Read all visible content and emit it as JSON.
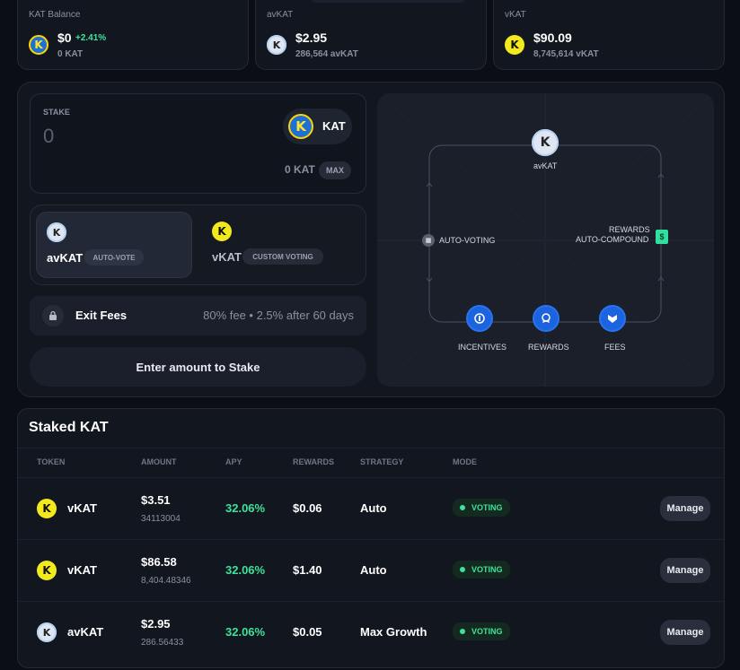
{
  "balances": [
    {
      "label": "KAT Balance",
      "value": "$0",
      "change": "+2.41%",
      "sub": "0 KAT",
      "coin": "kat"
    },
    {
      "label": "avKAT",
      "value": "$2.95",
      "change": "",
      "sub": "286,564 avKAT",
      "coin": "avkat"
    },
    {
      "label": "vKAT",
      "value": "$90.09",
      "change": "",
      "sub": "8,745,614 vKAT",
      "coin": "vkat"
    }
  ],
  "stake": {
    "label": "STAKE",
    "amount_placeholder": "0",
    "token": "KAT",
    "balance": "0 KAT",
    "max_label": "MAX"
  },
  "modes": [
    {
      "name": "avKAT",
      "tag": "AUTO-VOTE",
      "selected": true
    },
    {
      "name": "vKAT",
      "tag": "CUSTOM VOTING",
      "selected": false
    }
  ],
  "exit_fees": {
    "label": "Exit Fees",
    "detail": "80% fee • 2.5% after 60 days"
  },
  "submit_label": "Enter amount to Stake",
  "diagram": {
    "center": "avKAT",
    "left": "AUTO-VOTING",
    "right_line1": "REWARDS",
    "right_line2": "AUTO-COMPOUND",
    "right_icon": "$",
    "nodes": [
      "INCENTIVES",
      "REWARDS",
      "FEES"
    ]
  },
  "staked": {
    "title": "Staked KAT",
    "headers": [
      "TOKEN",
      "AMOUNT",
      "APY",
      "REWARDS",
      "STRATEGY",
      "MODE"
    ],
    "rows": [
      {
        "token": "vKAT",
        "coin": "vkat",
        "amount": "$3.51",
        "amount_sub": "34113004",
        "apy": "32.06%",
        "rewards": "$0.06",
        "strategy": "Auto",
        "mode": "VOTING",
        "action": "Manage"
      },
      {
        "token": "vKAT",
        "coin": "vkat",
        "amount": "$86.58",
        "amount_sub": "8,404.48346",
        "apy": "32.06%",
        "rewards": "$1.40",
        "strategy": "Auto",
        "mode": "VOTING",
        "action": "Manage"
      },
      {
        "token": "avKAT",
        "coin": "avkat",
        "amount": "$2.95",
        "amount_sub": "286.56433",
        "apy": "32.06%",
        "rewards": "$0.05",
        "strategy": "Max Growth",
        "mode": "VOTING",
        "action": "Manage"
      }
    ]
  },
  "colors": {
    "accent_green": "#3ee29a",
    "node_blue": "#1c63e0",
    "kat_yellow": "#f2ea1c"
  }
}
